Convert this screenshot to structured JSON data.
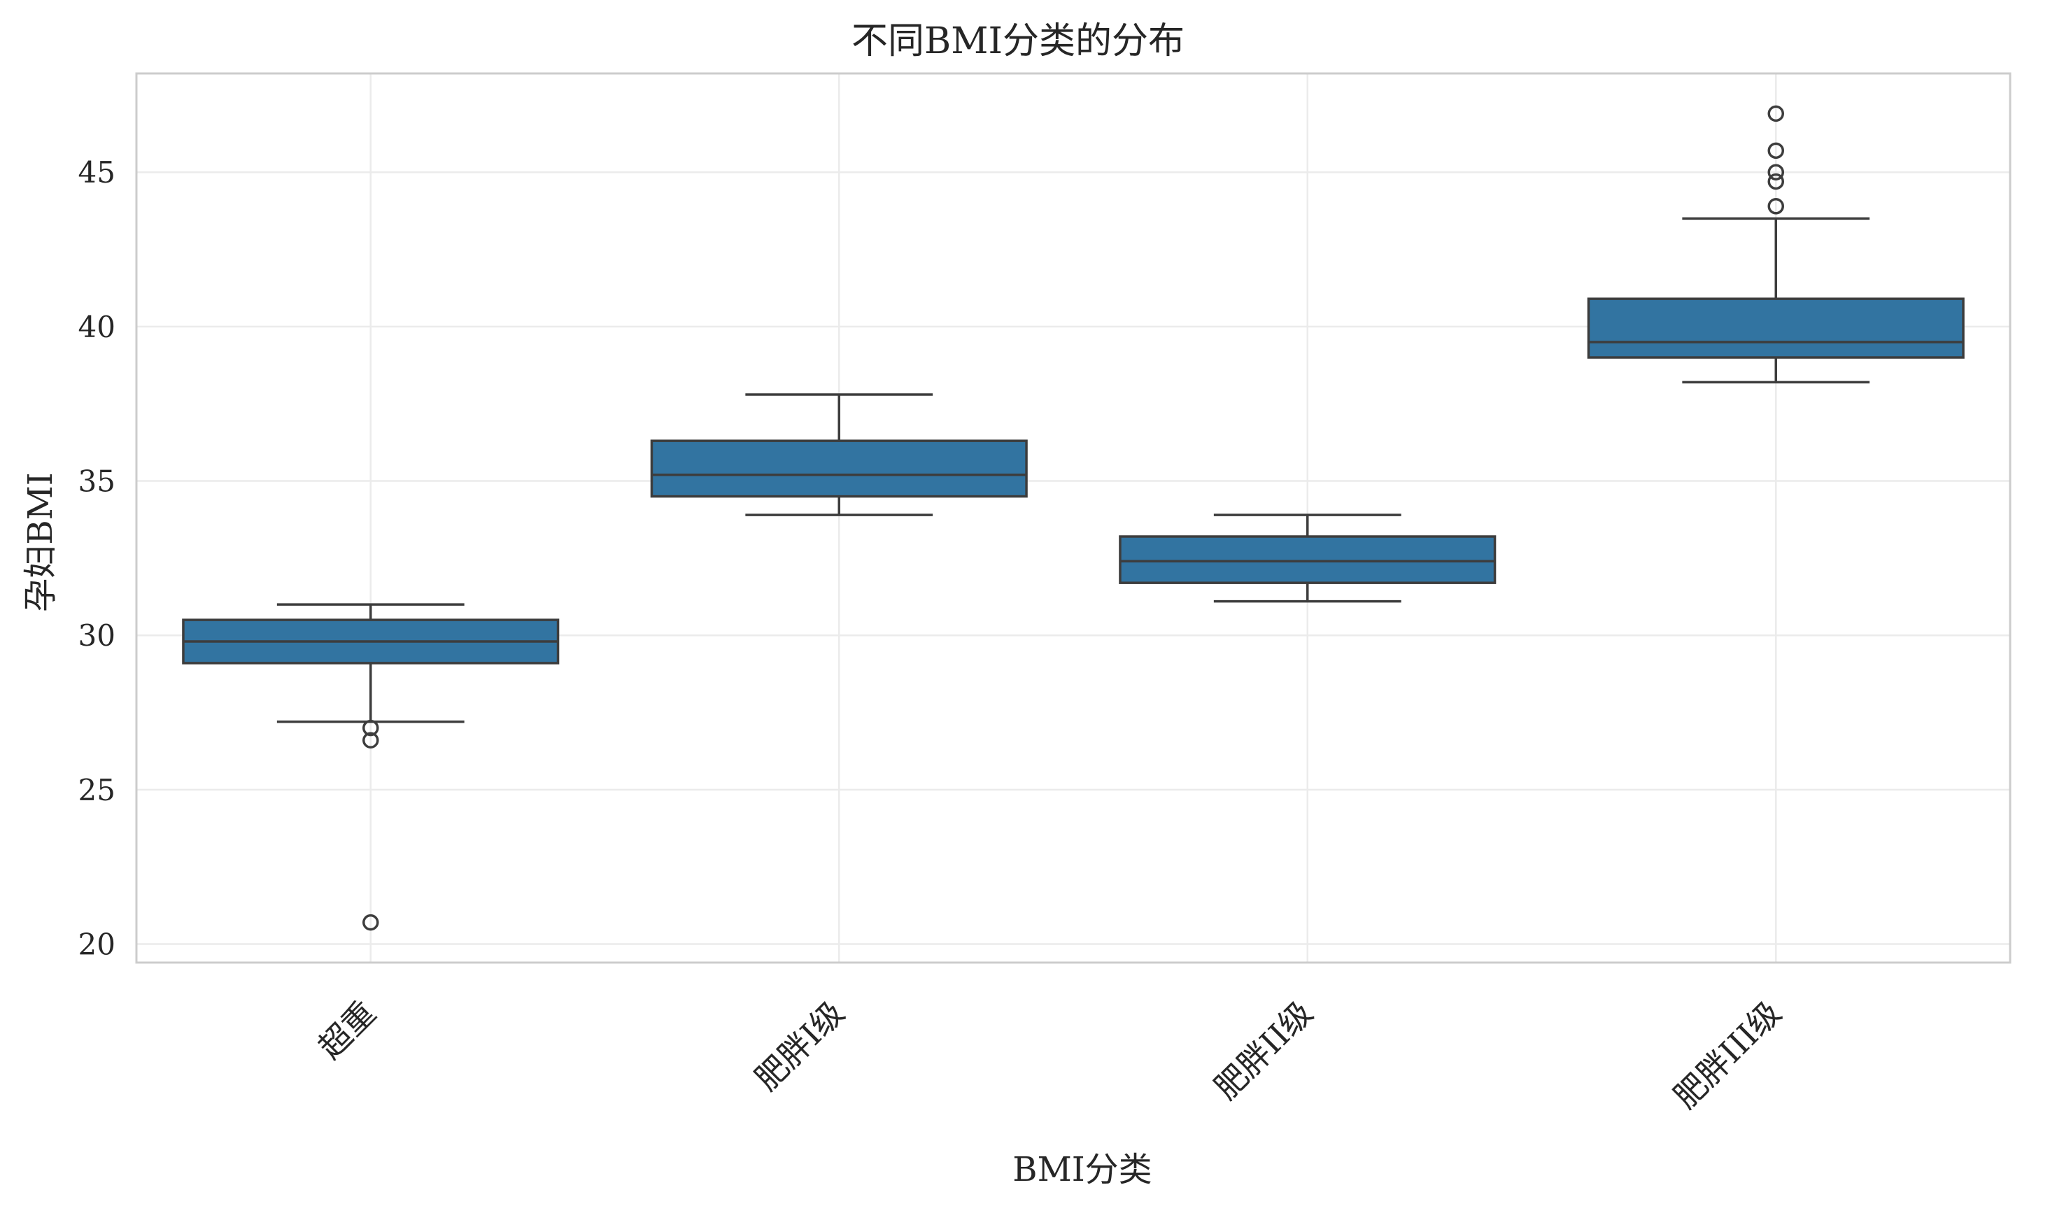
{
  "chart_data": {
    "type": "box",
    "title": "不同BMI分类的分布",
    "xlabel": "BMI分类",
    "ylabel": "孕妇BMI",
    "ylim": [
      19.4,
      48.2
    ],
    "yticks": [
      20,
      25,
      30,
      35,
      40,
      45
    ],
    "grid": true,
    "box_color": "#3274a1",
    "line_color": "#3d3d3d",
    "categories": [
      "超重",
      "肥胖I级",
      "肥胖II级",
      "肥胖III级"
    ],
    "boxes": [
      {
        "category": "超重",
        "whisker_low": 27.2,
        "q1": 29.1,
        "median": 29.8,
        "q3": 30.5,
        "whisker_high": 31.0,
        "outliers": [
          27.0,
          26.6,
          20.7
        ]
      },
      {
        "category": "肥胖I级",
        "whisker_low": 33.9,
        "q1": 34.5,
        "median": 35.2,
        "q3": 36.3,
        "whisker_high": 37.8,
        "outliers": []
      },
      {
        "category": "肥胖II级",
        "whisker_low": 31.1,
        "q1": 31.7,
        "median": 32.4,
        "q3": 33.2,
        "whisker_high": 33.9,
        "outliers": []
      },
      {
        "category": "肥胖III级",
        "whisker_low": 38.2,
        "q1": 39.0,
        "median": 39.5,
        "q3": 40.9,
        "whisker_high": 43.5,
        "outliers": [
          43.9,
          44.7,
          45.0,
          45.7,
          46.9
        ]
      }
    ]
  }
}
